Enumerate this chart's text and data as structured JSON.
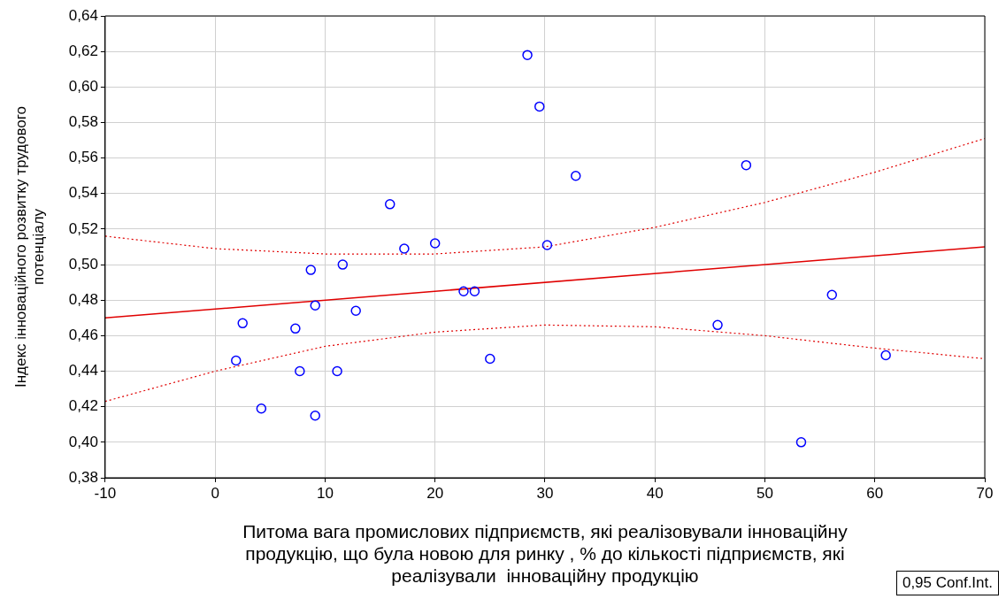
{
  "chart_data": {
    "type": "scatter",
    "xlabel": "Питома вага промислових підприємств, які реалізовували інноваційну продукцію, що була новою для ринку , % до кількості підприємств, які реалізували  інноваційну продукцію",
    "ylabel": "Індекс інноваційного розвитку трудового потенціалу",
    "annotations": [
      "0,95 Conf.Int."
    ],
    "xlim": [
      -10,
      70
    ],
    "xticks": [
      -10,
      0,
      10,
      20,
      30,
      40,
      50,
      60,
      70
    ],
    "ylim": [
      0.38,
      0.64
    ],
    "yticks": [
      {
        "value": 0.38,
        "label": "0,38"
      },
      {
        "value": 0.4,
        "label": "0,40"
      },
      {
        "value": 0.42,
        "label": "0,42"
      },
      {
        "value": 0.44,
        "label": "0,44"
      },
      {
        "value": 0.46,
        "label": "0,46"
      },
      {
        "value": 0.48,
        "label": "0,48"
      },
      {
        "value": 0.5,
        "label": "0,50"
      },
      {
        "value": 0.52,
        "label": "0,52"
      },
      {
        "value": 0.54,
        "label": "0,54"
      },
      {
        "value": 0.56,
        "label": "0,56"
      },
      {
        "value": 0.58,
        "label": "0,58"
      },
      {
        "value": 0.6,
        "label": "0,60"
      },
      {
        "value": 0.62,
        "label": "0,62"
      },
      {
        "value": 0.64,
        "label": "0,64"
      }
    ],
    "grid": true,
    "legend": false,
    "series": [
      {
        "color": "#0000ff",
        "marker": "circle",
        "x": [
          1.9,
          2.5,
          4.2,
          7.3,
          7.7,
          8.7,
          9.1,
          9.1,
          11.1,
          11.6,
          12.8,
          15.9,
          17.2,
          20.0,
          22.6,
          23.6,
          25.0,
          28.4,
          29.5,
          30.2,
          32.8,
          45.7,
          48.3,
          53.3,
          56.1,
          61.0
        ],
        "values": [
          0.446,
          0.467,
          0.419,
          0.464,
          0.44,
          0.497,
          0.477,
          0.415,
          0.44,
          0.5,
          0.474,
          0.534,
          0.509,
          0.512,
          0.485,
          0.485,
          0.447,
          0.618,
          0.589,
          0.511,
          0.55,
          0.466,
          0.556,
          0.4,
          0.483,
          0.449
        ]
      },
      {
        "type": "line",
        "color": "#e00000",
        "line_style": "solid",
        "x": [
          -10,
          70
        ],
        "values": [
          0.47,
          0.51
        ]
      },
      {
        "type": "line",
        "color": "#e00000",
        "line_style": "dotted",
        "x": [
          -10,
          0,
          10,
          20,
          30,
          40,
          50,
          60,
          70
        ],
        "values": [
          0.516,
          0.509,
          0.506,
          0.506,
          0.51,
          0.521,
          0.535,
          0.552,
          0.571
        ]
      },
      {
        "type": "line",
        "color": "#e00000",
        "line_style": "dotted",
        "x": [
          -10,
          0,
          10,
          20,
          30,
          40,
          50,
          60,
          70
        ],
        "values": [
          0.423,
          0.44,
          0.454,
          0.462,
          0.466,
          0.465,
          0.46,
          0.453,
          0.447
        ]
      }
    ]
  }
}
